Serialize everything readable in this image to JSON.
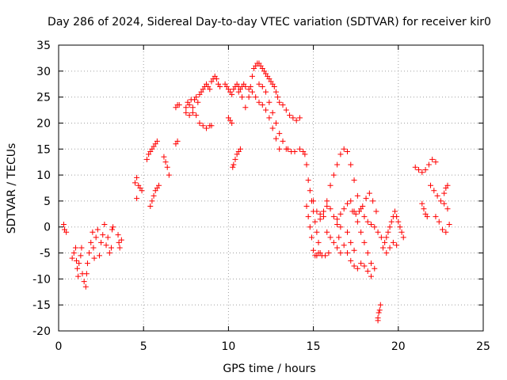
{
  "chart_data": {
    "type": "scatter",
    "title": "Day 286 of 2024, Sidereal Day-to-day VTEC variation (SDTVAR) for receiver kir0",
    "xlabel": "GPS time / hours",
    "ylabel": "SDTVAR / TECUs",
    "xlim": [
      0,
      25
    ],
    "ylim": [
      -20,
      35
    ],
    "xticks": [
      "0",
      "5",
      "10",
      "15",
      "20",
      "25"
    ],
    "yticks": [
      "-20",
      "-15",
      "-10",
      "-5",
      "0",
      "5",
      "10",
      "15",
      "20",
      "25",
      "30",
      "35"
    ],
    "grid": true,
    "marker": "+",
    "color": "#ff0000",
    "series": [
      {
        "name": "SDTVAR",
        "points": [
          [
            0.3,
            0.5
          ],
          [
            0.35,
            -0.5
          ],
          [
            0.45,
            -1.0
          ],
          [
            0.8,
            -6.0
          ],
          [
            0.9,
            -5.0
          ],
          [
            1.0,
            -4.0
          ],
          [
            1.05,
            -6.5
          ],
          [
            1.1,
            -8.0
          ],
          [
            1.15,
            -9.5
          ],
          [
            1.2,
            -7.0
          ],
          [
            1.3,
            -5.5
          ],
          [
            1.35,
            -4.0
          ],
          [
            1.4,
            -9.0
          ],
          [
            1.5,
            -10.5
          ],
          [
            1.6,
            -11.5
          ],
          [
            1.65,
            -9.0
          ],
          [
            1.7,
            -7.0
          ],
          [
            1.8,
            -5.0
          ],
          [
            1.9,
            -3.0
          ],
          [
            2.0,
            -1.0
          ],
          [
            2.05,
            -4.0
          ],
          [
            2.1,
            -6.0
          ],
          [
            2.2,
            -2.0
          ],
          [
            2.3,
            -0.5
          ],
          [
            2.4,
            -5.5
          ],
          [
            2.5,
            -3.0
          ],
          [
            2.6,
            -1.5
          ],
          [
            2.7,
            0.5
          ],
          [
            2.8,
            -3.5
          ],
          [
            2.9,
            -2.0
          ],
          [
            3.0,
            -5.0
          ],
          [
            3.1,
            -4.0
          ],
          [
            3.15,
            -0.5
          ],
          [
            3.2,
            0.0
          ],
          [
            3.5,
            -1.5
          ],
          [
            3.55,
            -3.0
          ],
          [
            3.6,
            -4.0
          ],
          [
            3.7,
            -2.5
          ],
          [
            4.5,
            8.5
          ],
          [
            4.6,
            9.5
          ],
          [
            4.7,
            8.0
          ],
          [
            4.8,
            7.5
          ],
          [
            4.6,
            5.5
          ],
          [
            4.9,
            7.0
          ],
          [
            5.2,
            13.0
          ],
          [
            5.3,
            14.0
          ],
          [
            5.4,
            14.5
          ],
          [
            5.5,
            15.0
          ],
          [
            5.6,
            15.5
          ],
          [
            5.7,
            16.0
          ],
          [
            5.8,
            16.5
          ],
          [
            5.4,
            4.0
          ],
          [
            5.5,
            5.0
          ],
          [
            5.6,
            6.0
          ],
          [
            5.7,
            7.0
          ],
          [
            5.8,
            7.5
          ],
          [
            5.9,
            8.0
          ],
          [
            6.2,
            13.5
          ],
          [
            6.3,
            12.5
          ],
          [
            6.4,
            11.5
          ],
          [
            6.5,
            10.0
          ],
          [
            6.9,
            16.0
          ],
          [
            7.0,
            16.5
          ],
          [
            6.9,
            23.0
          ],
          [
            7.0,
            23.5
          ],
          [
            7.1,
            23.5
          ],
          [
            7.5,
            23.0
          ],
          [
            7.6,
            24.0
          ],
          [
            7.7,
            23.5
          ],
          [
            7.8,
            24.5
          ],
          [
            7.9,
            23.0
          ],
          [
            8.0,
            24.5
          ],
          [
            8.1,
            25.0
          ],
          [
            8.2,
            24.0
          ],
          [
            8.3,
            25.5
          ],
          [
            8.4,
            26.0
          ],
          [
            8.5,
            26.5
          ],
          [
            8.6,
            27.0
          ],
          [
            8.7,
            27.5
          ],
          [
            8.8,
            27.0
          ],
          [
            8.9,
            26.5
          ],
          [
            9.0,
            28.0
          ],
          [
            9.1,
            28.5
          ],
          [
            9.2,
            29.0
          ],
          [
            9.3,
            28.5
          ],
          [
            9.4,
            27.5
          ],
          [
            9.5,
            27.0
          ],
          [
            7.5,
            22.0
          ],
          [
            7.7,
            21.5
          ],
          [
            7.9,
            22.0
          ],
          [
            8.1,
            21.5
          ],
          [
            8.3,
            20.0
          ],
          [
            8.5,
            19.5
          ],
          [
            8.7,
            19.0
          ],
          [
            8.9,
            19.5
          ],
          [
            9.0,
            19.5
          ],
          [
            9.8,
            27.5
          ],
          [
            9.9,
            27.0
          ],
          [
            10.0,
            26.5
          ],
          [
            10.1,
            26.0
          ],
          [
            10.2,
            25.5
          ],
          [
            10.3,
            26.5
          ],
          [
            10.4,
            27.0
          ],
          [
            10.5,
            27.5
          ],
          [
            10.6,
            27.0
          ],
          [
            10.7,
            26.5
          ],
          [
            10.8,
            27.0
          ],
          [
            10.9,
            27.5
          ],
          [
            10.0,
            21.0
          ],
          [
            10.1,
            20.5
          ],
          [
            10.2,
            20.0
          ],
          [
            10.25,
            11.5
          ],
          [
            10.3,
            12.0
          ],
          [
            10.4,
            13.0
          ],
          [
            10.5,
            14.0
          ],
          [
            10.6,
            14.5
          ],
          [
            10.7,
            15.0
          ],
          [
            10.6,
            26.0
          ],
          [
            10.8,
            25.0
          ],
          [
            11.0,
            23.0
          ],
          [
            11.2,
            25.0
          ],
          [
            11.3,
            27.0
          ],
          [
            11.4,
            29.0
          ],
          [
            11.5,
            30.5
          ],
          [
            11.6,
            31.0
          ],
          [
            11.7,
            31.5
          ],
          [
            11.8,
            31.5
          ],
          [
            11.9,
            31.0
          ],
          [
            12.0,
            30.5
          ],
          [
            12.1,
            30.0
          ],
          [
            12.2,
            29.5
          ],
          [
            12.3,
            29.0
          ],
          [
            12.4,
            28.5
          ],
          [
            12.5,
            28.0
          ],
          [
            12.6,
            27.5
          ],
          [
            12.7,
            27.0
          ],
          [
            12.8,
            26.0
          ],
          [
            12.9,
            25.0
          ],
          [
            11.0,
            27.0
          ],
          [
            11.2,
            26.5
          ],
          [
            11.4,
            26.0
          ],
          [
            11.6,
            25.0
          ],
          [
            11.8,
            24.0
          ],
          [
            12.0,
            23.5
          ],
          [
            12.2,
            22.5
          ],
          [
            12.4,
            21.0
          ],
          [
            12.6,
            19.0
          ],
          [
            12.8,
            17.0
          ],
          [
            13.0,
            15.0
          ],
          [
            11.8,
            27.5
          ],
          [
            12.0,
            27.0
          ],
          [
            12.2,
            26.0
          ],
          [
            12.4,
            24.0
          ],
          [
            12.6,
            22.0
          ],
          [
            12.8,
            20.0
          ],
          [
            13.0,
            18.0
          ],
          [
            13.2,
            16.5
          ],
          [
            13.4,
            15.0
          ],
          [
            13.0,
            24.0
          ],
          [
            13.2,
            23.5
          ],
          [
            13.4,
            22.5
          ],
          [
            13.6,
            21.5
          ],
          [
            13.8,
            21.0
          ],
          [
            14.0,
            20.5
          ],
          [
            14.2,
            21.0
          ],
          [
            13.5,
            15.0
          ],
          [
            13.7,
            14.5
          ],
          [
            13.9,
            14.5
          ],
          [
            14.2,
            15.0
          ],
          [
            14.4,
            14.5
          ],
          [
            14.5,
            14.0
          ],
          [
            14.6,
            12.0
          ],
          [
            14.7,
            9.0
          ],
          [
            14.8,
            7.0
          ],
          [
            14.9,
            5.0
          ],
          [
            15.0,
            3.0
          ],
          [
            15.1,
            1.0
          ],
          [
            15.2,
            -1.0
          ],
          [
            15.3,
            -3.0
          ],
          [
            15.4,
            -5.0
          ],
          [
            14.6,
            4.0
          ],
          [
            14.7,
            2.0
          ],
          [
            14.8,
            0.0
          ],
          [
            14.9,
            -2.0
          ],
          [
            15.0,
            -4.5
          ],
          [
            15.1,
            -5.5
          ],
          [
            15.2,
            -5.5
          ],
          [
            15.3,
            -5.0
          ],
          [
            15.5,
            -5.5
          ],
          [
            15.7,
            -5.5
          ],
          [
            15.9,
            -5.0
          ],
          [
            15.0,
            5.0
          ],
          [
            15.2,
            3.0
          ],
          [
            15.4,
            2.5
          ],
          [
            15.6,
            3.0
          ],
          [
            15.8,
            4.0
          ],
          [
            16.0,
            3.5
          ],
          [
            16.2,
            2.0
          ],
          [
            16.4,
            0.5
          ],
          [
            16.6,
            0.0
          ],
          [
            15.4,
            1.5
          ],
          [
            15.6,
            2.0
          ],
          [
            15.8,
            5.0
          ],
          [
            16.0,
            8.0
          ],
          [
            16.2,
            10.0
          ],
          [
            16.4,
            12.0
          ],
          [
            16.6,
            14.0
          ],
          [
            16.8,
            15.0
          ],
          [
            15.8,
            -1.0
          ],
          [
            16.0,
            -2.0
          ],
          [
            16.2,
            -3.0
          ],
          [
            16.4,
            -4.0
          ],
          [
            16.6,
            -5.0
          ],
          [
            16.4,
            1.5
          ],
          [
            16.6,
            2.5
          ],
          [
            16.8,
            3.5
          ],
          [
            17.0,
            4.5
          ],
          [
            17.2,
            5.0
          ],
          [
            17.4,
            3.0
          ],
          [
            17.6,
            1.0
          ],
          [
            17.8,
            -1.0
          ],
          [
            18.0,
            -3.0
          ],
          [
            18.2,
            -5.0
          ],
          [
            18.4,
            -7.0
          ],
          [
            16.5,
            -2.0
          ],
          [
            16.8,
            -3.5
          ],
          [
            17.0,
            -5.0
          ],
          [
            17.2,
            -6.5
          ],
          [
            17.4,
            -7.5
          ],
          [
            17.6,
            -8.0
          ],
          [
            17.8,
            -7.0
          ],
          [
            18.0,
            -7.5
          ],
          [
            18.2,
            -8.5
          ],
          [
            18.4,
            -9.5
          ],
          [
            18.6,
            -8.0
          ],
          [
            17.0,
            14.5
          ],
          [
            17.2,
            12.0
          ],
          [
            17.4,
            9.0
          ],
          [
            17.6,
            6.0
          ],
          [
            17.8,
            3.5
          ],
          [
            18.0,
            2.0
          ],
          [
            18.2,
            1.0
          ],
          [
            18.4,
            0.5
          ],
          [
            18.6,
            0.0
          ],
          [
            18.8,
            -1.0
          ],
          [
            19.0,
            -2.0
          ],
          [
            17.3,
            3.0
          ],
          [
            17.5,
            2.5
          ],
          [
            17.7,
            3.0
          ],
          [
            17.9,
            4.0
          ],
          [
            18.1,
            5.5
          ],
          [
            18.3,
            6.5
          ],
          [
            18.5,
            5.0
          ],
          [
            18.7,
            3.0
          ],
          [
            17.0,
            -1.0
          ],
          [
            17.2,
            -3.0
          ],
          [
            17.4,
            -4.5
          ],
          [
            18.8,
            -17.5
          ],
          [
            18.85,
            -16.5
          ],
          [
            18.9,
            -16.0
          ],
          [
            18.95,
            -15.0
          ],
          [
            18.8,
            -18.0
          ],
          [
            19.1,
            -4.0
          ],
          [
            19.2,
            -3.0
          ],
          [
            19.3,
            -2.0
          ],
          [
            19.4,
            -1.0
          ],
          [
            19.5,
            0.0
          ],
          [
            19.6,
            1.0
          ],
          [
            19.7,
            2.0
          ],
          [
            19.8,
            3.0
          ],
          [
            19.9,
            2.0
          ],
          [
            20.0,
            1.0
          ],
          [
            20.1,
            0.0
          ],
          [
            20.2,
            -1.0
          ],
          [
            20.3,
            -2.0
          ],
          [
            19.3,
            -5.0
          ],
          [
            19.5,
            -4.0
          ],
          [
            19.7,
            -3.0
          ],
          [
            19.9,
            -3.5
          ],
          [
            21.0,
            11.5
          ],
          [
            21.2,
            11.0
          ],
          [
            21.4,
            10.5
          ],
          [
            21.6,
            11.0
          ],
          [
            21.8,
            12.0
          ],
          [
            22.0,
            13.0
          ],
          [
            22.2,
            12.5
          ],
          [
            21.4,
            4.5
          ],
          [
            21.5,
            3.5
          ],
          [
            21.6,
            2.5
          ],
          [
            21.7,
            2.0
          ],
          [
            21.9,
            8.0
          ],
          [
            22.1,
            7.0
          ],
          [
            22.3,
            6.0
          ],
          [
            22.5,
            5.0
          ],
          [
            22.7,
            4.5
          ],
          [
            22.9,
            3.5
          ],
          [
            22.2,
            2.0
          ],
          [
            22.4,
            1.0
          ],
          [
            22.6,
            -0.5
          ],
          [
            22.8,
            -1.0
          ],
          [
            23.0,
            0.5
          ],
          [
            22.7,
            6.5
          ],
          [
            22.8,
            7.5
          ],
          [
            22.9,
            8.0
          ]
        ]
      }
    ]
  }
}
